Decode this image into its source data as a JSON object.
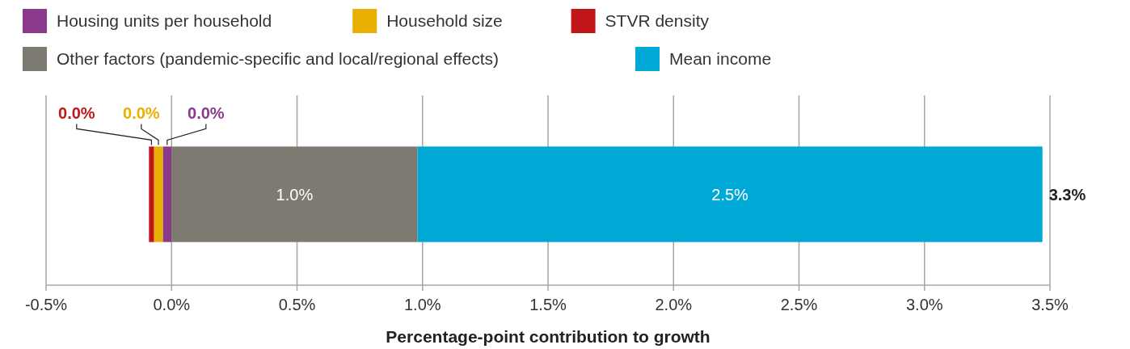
{
  "chart_data": {
    "type": "bar",
    "orientation": "horizontal",
    "stacked": true,
    "categories": [
      null
    ],
    "series": [
      {
        "name": "Housing units per household",
        "color": "#8b3a8b",
        "values": [
          -0.035
        ],
        "value_labels": [
          "0.0%"
        ]
      },
      {
        "name": "Household size",
        "color": "#e8b000",
        "values": [
          -0.035
        ],
        "value_labels": [
          "0.0%"
        ]
      },
      {
        "name": "STVR density",
        "color": "#c0161a",
        "values": [
          -0.02
        ],
        "value_labels": [
          "0.0%"
        ]
      },
      {
        "name": "Other factors (pandemic-specific and local/regional effects)",
        "color": "#7d7a72",
        "values": [
          0.98
        ],
        "value_labels": [
          "1.0%"
        ]
      },
      {
        "name": "Mean income",
        "color": "#00a8d6",
        "values": [
          2.49
        ],
        "value_labels": [
          "2.5%"
        ]
      }
    ],
    "totals": [
      "3.3%"
    ],
    "xlim": [
      -0.5,
      3.5
    ],
    "xticks": [
      {
        "value": -0.5,
        "label": "-0.5%"
      },
      {
        "value": 0,
        "label": "0.0%"
      },
      {
        "value": 0.5,
        "label": "0.5%"
      },
      {
        "value": 1,
        "label": "1.0%"
      },
      {
        "value": 1.5,
        "label": "1.5%"
      },
      {
        "value": 2,
        "label": "2.0%"
      },
      {
        "value": 2.5,
        "label": "2.5%"
      },
      {
        "value": 3,
        "label": "3.0%"
      },
      {
        "value": 3.5,
        "label": "3.5%"
      }
    ],
    "xlabel": "Percentage-point contribution to growth",
    "grid": "x",
    "legend": "top"
  }
}
